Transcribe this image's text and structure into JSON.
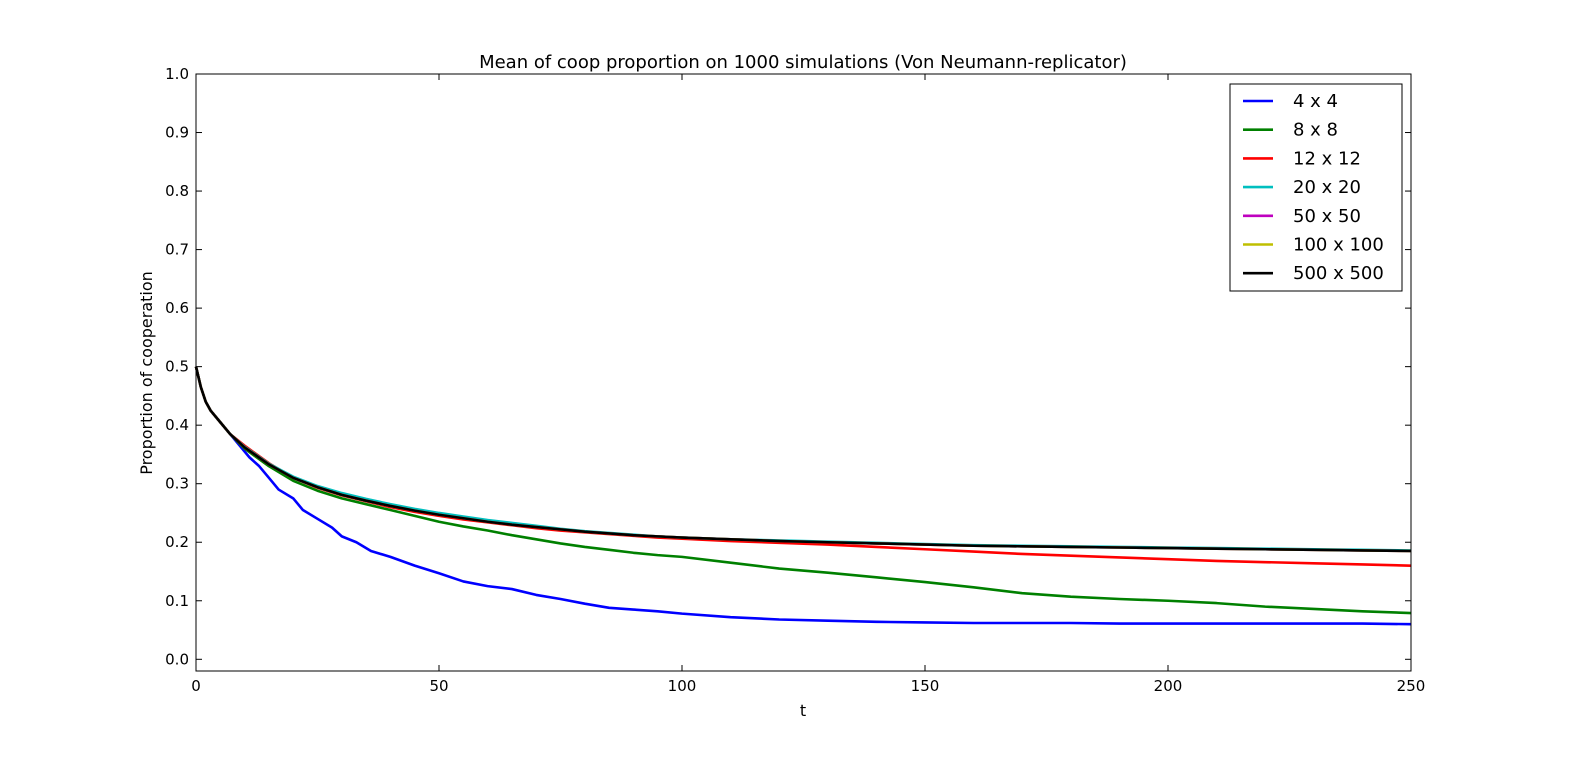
{
  "chart_data": {
    "type": "line",
    "title": "Mean of coop proportion on 1000 simulations (Von Neumann-replicator)",
    "xlabel": "t",
    "ylabel": "Proportion of cooperation",
    "xlim": [
      0,
      250
    ],
    "ylim": [
      -0.02,
      1.0
    ],
    "x_ticks": [
      0,
      50,
      100,
      150,
      200,
      250
    ],
    "x_tick_labels": [
      "0",
      "50",
      "100",
      "150",
      "200",
      "250"
    ],
    "y_ticks": [
      0.0,
      0.1,
      0.2,
      0.3,
      0.4,
      0.5,
      0.6,
      0.7,
      0.8,
      0.9,
      1.0
    ],
    "y_tick_labels": [
      "0.0",
      "0.1",
      "0.2",
      "0.3",
      "0.4",
      "0.5",
      "0.6",
      "0.7",
      "0.8",
      "0.9",
      "1.0"
    ],
    "grid": false,
    "legend_position": "top-right",
    "series": [
      {
        "name": "4 x 4",
        "color": "#0000ff",
        "x": [
          0,
          1,
          2,
          3,
          5,
          7,
          9,
          11,
          13,
          15,
          17,
          20,
          22,
          25,
          28,
          30,
          33,
          36,
          40,
          45,
          50,
          55,
          60,
          65,
          70,
          75,
          80,
          85,
          90,
          95,
          100,
          110,
          120,
          130,
          140,
          150,
          160,
          170,
          180,
          190,
          200,
          210,
          220,
          230,
          240,
          250
        ],
        "y": [
          0.5,
          0.465,
          0.44,
          0.425,
          0.405,
          0.385,
          0.365,
          0.345,
          0.33,
          0.31,
          0.29,
          0.275,
          0.255,
          0.24,
          0.225,
          0.21,
          0.2,
          0.185,
          0.175,
          0.16,
          0.147,
          0.133,
          0.125,
          0.12,
          0.11,
          0.103,
          0.095,
          0.088,
          0.085,
          0.082,
          0.078,
          0.072,
          0.068,
          0.066,
          0.064,
          0.063,
          0.062,
          0.062,
          0.062,
          0.061,
          0.061,
          0.061,
          0.061,
          0.061,
          0.061,
          0.06
        ]
      },
      {
        "name": "8 x 8",
        "color": "#008000",
        "x": [
          0,
          1,
          2,
          3,
          5,
          7,
          10,
          15,
          20,
          25,
          30,
          35,
          40,
          45,
          50,
          55,
          60,
          65,
          70,
          75,
          80,
          85,
          90,
          95,
          100,
          110,
          120,
          130,
          140,
          150,
          160,
          170,
          180,
          190,
          200,
          210,
          220,
          230,
          240,
          250
        ],
        "y": [
          0.5,
          0.465,
          0.44,
          0.425,
          0.405,
          0.385,
          0.36,
          0.33,
          0.305,
          0.288,
          0.275,
          0.265,
          0.255,
          0.245,
          0.235,
          0.227,
          0.22,
          0.212,
          0.205,
          0.198,
          0.192,
          0.187,
          0.182,
          0.178,
          0.175,
          0.165,
          0.155,
          0.148,
          0.14,
          0.132,
          0.123,
          0.113,
          0.107,
          0.103,
          0.1,
          0.096,
          0.09,
          0.086,
          0.082,
          0.079
        ]
      },
      {
        "name": "12 x 12",
        "color": "#ff0000",
        "x": [
          0,
          1,
          2,
          3,
          5,
          7,
          10,
          15,
          20,
          25,
          30,
          35,
          40,
          45,
          50,
          55,
          60,
          65,
          70,
          75,
          80,
          85,
          90,
          95,
          100,
          110,
          120,
          130,
          140,
          150,
          160,
          170,
          180,
          190,
          200,
          210,
          220,
          230,
          240,
          250
        ],
        "y": [
          0.5,
          0.465,
          0.44,
          0.425,
          0.405,
          0.385,
          0.365,
          0.335,
          0.31,
          0.293,
          0.28,
          0.27,
          0.26,
          0.252,
          0.245,
          0.239,
          0.234,
          0.229,
          0.224,
          0.22,
          0.217,
          0.214,
          0.211,
          0.208,
          0.206,
          0.202,
          0.199,
          0.196,
          0.192,
          0.188,
          0.184,
          0.18,
          0.177,
          0.174,
          0.171,
          0.168,
          0.166,
          0.164,
          0.162,
          0.16
        ]
      },
      {
        "name": "20 x 20",
        "color": "#00bfbf",
        "x": [
          0,
          1,
          2,
          3,
          5,
          7,
          10,
          15,
          20,
          25,
          30,
          35,
          40,
          45,
          50,
          55,
          60,
          65,
          70,
          75,
          80,
          85,
          90,
          95,
          100,
          110,
          120,
          130,
          140,
          150,
          160,
          170,
          180,
          190,
          200,
          210,
          220,
          230,
          240,
          250
        ],
        "y": [
          0.5,
          0.465,
          0.44,
          0.425,
          0.405,
          0.385,
          0.363,
          0.334,
          0.312,
          0.296,
          0.284,
          0.274,
          0.265,
          0.257,
          0.25,
          0.244,
          0.238,
          0.233,
          0.228,
          0.223,
          0.219,
          0.216,
          0.213,
          0.21,
          0.208,
          0.205,
          0.203,
          0.201,
          0.199,
          0.197,
          0.195,
          0.194,
          0.193,
          0.192,
          0.191,
          0.19,
          0.189,
          0.188,
          0.187,
          0.186
        ]
      },
      {
        "name": "50 x 50",
        "color": "#bf00bf",
        "x": [
          0,
          1,
          2,
          3,
          5,
          7,
          10,
          15,
          20,
          25,
          30,
          35,
          40,
          45,
          50,
          55,
          60,
          65,
          70,
          75,
          80,
          85,
          90,
          95,
          100,
          110,
          120,
          130,
          140,
          150,
          160,
          170,
          180,
          190,
          200,
          210,
          220,
          230,
          240,
          250
        ],
        "y": [
          0.5,
          0.465,
          0.44,
          0.425,
          0.405,
          0.385,
          0.362,
          0.333,
          0.31,
          0.294,
          0.281,
          0.271,
          0.262,
          0.254,
          0.247,
          0.241,
          0.235,
          0.23,
          0.226,
          0.222,
          0.218,
          0.215,
          0.212,
          0.21,
          0.208,
          0.205,
          0.202,
          0.2,
          0.198,
          0.196,
          0.194,
          0.193,
          0.192,
          0.191,
          0.19,
          0.189,
          0.188,
          0.187,
          0.186,
          0.185
        ]
      },
      {
        "name": "100 x 100",
        "color": "#bfbf00",
        "x": [
          0,
          1,
          2,
          3,
          5,
          7,
          10,
          15,
          20,
          25,
          30,
          35,
          40,
          45,
          50,
          55,
          60,
          65,
          70,
          75,
          80,
          85,
          90,
          95,
          100,
          110,
          120,
          130,
          140,
          150,
          160,
          170,
          180,
          190,
          200,
          210,
          220,
          230,
          240,
          250
        ],
        "y": [
          0.5,
          0.465,
          0.44,
          0.425,
          0.405,
          0.385,
          0.362,
          0.333,
          0.31,
          0.294,
          0.281,
          0.271,
          0.262,
          0.254,
          0.247,
          0.241,
          0.235,
          0.23,
          0.226,
          0.222,
          0.218,
          0.215,
          0.212,
          0.21,
          0.208,
          0.205,
          0.202,
          0.2,
          0.198,
          0.196,
          0.194,
          0.193,
          0.192,
          0.191,
          0.19,
          0.189,
          0.188,
          0.187,
          0.186,
          0.185
        ]
      },
      {
        "name": "500 x 500",
        "color": "#000000",
        "x": [
          0,
          1,
          2,
          3,
          5,
          7,
          10,
          15,
          20,
          25,
          30,
          35,
          40,
          45,
          50,
          55,
          60,
          65,
          70,
          75,
          80,
          85,
          90,
          95,
          100,
          110,
          120,
          130,
          140,
          150,
          160,
          170,
          180,
          190,
          200,
          210,
          220,
          230,
          240,
          250
        ],
        "y": [
          0.5,
          0.465,
          0.44,
          0.425,
          0.405,
          0.385,
          0.362,
          0.333,
          0.31,
          0.294,
          0.281,
          0.271,
          0.262,
          0.254,
          0.247,
          0.241,
          0.235,
          0.23,
          0.226,
          0.222,
          0.218,
          0.215,
          0.212,
          0.21,
          0.208,
          0.205,
          0.202,
          0.2,
          0.198,
          0.196,
          0.194,
          0.193,
          0.192,
          0.191,
          0.19,
          0.189,
          0.188,
          0.187,
          0.186,
          0.185
        ]
      }
    ]
  }
}
